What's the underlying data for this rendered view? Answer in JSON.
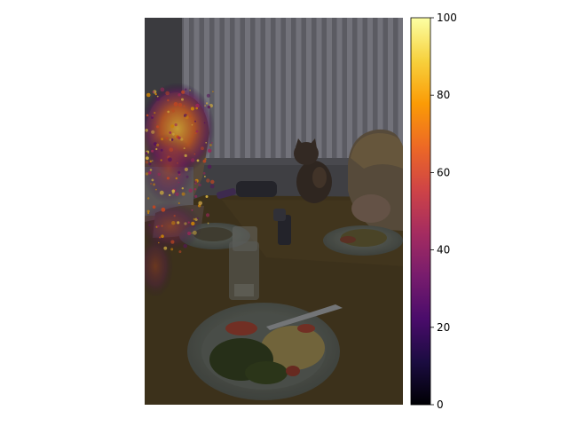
{
  "colorbar": {
    "colormap": "inferno",
    "range": [
      0,
      100
    ],
    "ticks": [
      "0",
      "20",
      "40",
      "60",
      "80",
      "100"
    ],
    "stops": [
      "#000004",
      "#1b0c41",
      "#4a0c6b",
      "#781c6d",
      "#a52c60",
      "#cf4446",
      "#ed6925",
      "#fb9b06",
      "#f7d13d",
      "#fcffa4"
    ]
  },
  "scene": {
    "palette": {
      "wall": "#4a4a4f",
      "blinds": "#8a8a94",
      "table": "#4b3d22",
      "plate": "#646a63",
      "food_pasta": "#8a7a48",
      "food_greens": "#2f3a1e",
      "cat": "#3a2f28"
    },
    "heat_regions": [
      "left-child-hair",
      "left-child-arm",
      "left-edge"
    ]
  }
}
